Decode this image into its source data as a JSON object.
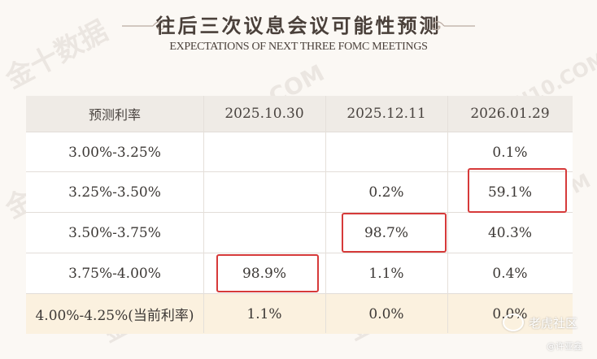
{
  "header": {
    "title": "往后三次议息会议可能性预测",
    "subtitle": "EXPECTATIONS OF NEXT THREE FOMC MEETINGS"
  },
  "table": {
    "columns": [
      "预测利率",
      "2025.10.30",
      "2025.12.11",
      "2026.01.29"
    ],
    "rows": [
      {
        "rate": "3.00%-3.25%",
        "values": [
          "",
          "",
          "0.1%"
        ]
      },
      {
        "rate": "3.25%-3.50%",
        "values": [
          "",
          "0.2%",
          "59.1%"
        ]
      },
      {
        "rate": "3.50%-3.75%",
        "values": [
          "",
          "98.7%",
          "40.3%"
        ]
      },
      {
        "rate": "3.75%-4.00%",
        "values": [
          "98.9%",
          "1.1%",
          "0.4%"
        ]
      },
      {
        "rate": "4.00%-4.25%(当前利率)",
        "values": [
          "1.1%",
          "0.0%",
          "0.0%"
        ]
      }
    ]
  },
  "highlights": [
    "98.9%",
    "98.7%",
    "59.1%"
  ],
  "watermarks": {
    "brand": "金十数据",
    "site": "JIN10.COM"
  },
  "footer": {
    "logo_text": "老虎社区",
    "author": "@许亚鑫"
  },
  "colors": {
    "highlight": "#d63a3a",
    "current_rate_row": "#fbf1df",
    "header_row": "#efebe6"
  }
}
